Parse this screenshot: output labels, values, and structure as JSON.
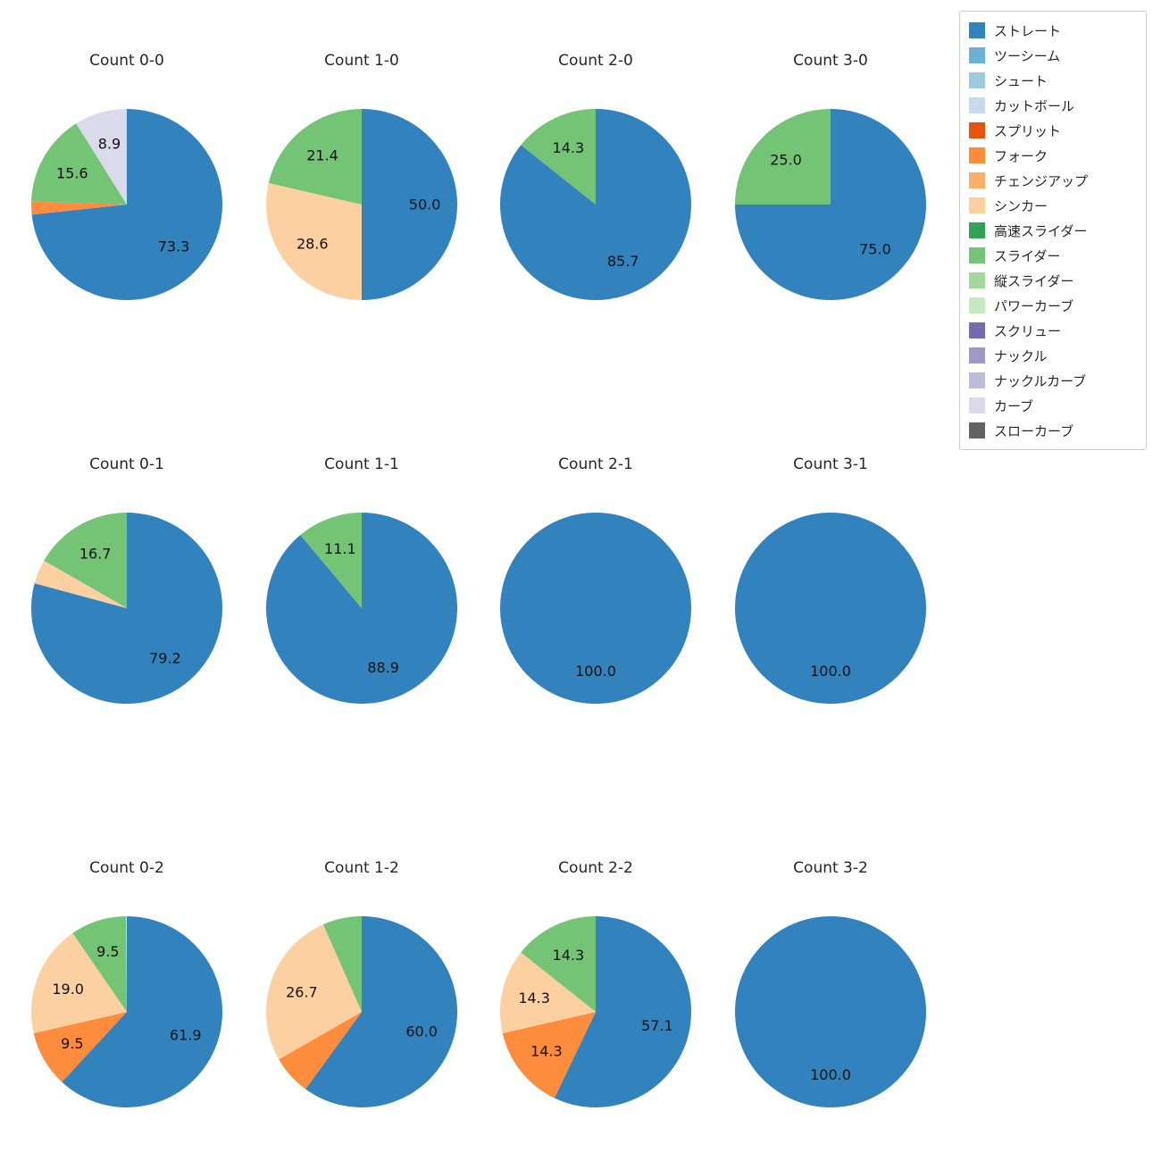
{
  "figure": {
    "background": "#ffffff"
  },
  "legend": {
    "position": "top-right",
    "items": [
      {
        "label": "ストレート",
        "color": "#3182bd"
      },
      {
        "label": "ツーシーム",
        "color": "#6baed6"
      },
      {
        "label": "シュート",
        "color": "#9ecae1"
      },
      {
        "label": "カットボール",
        "color": "#c6dbef"
      },
      {
        "label": "スプリット",
        "color": "#e6550d"
      },
      {
        "label": "フォーク",
        "color": "#fd8d3c"
      },
      {
        "label": "チェンジアップ",
        "color": "#fdae6b"
      },
      {
        "label": "シンカー",
        "color": "#fdd0a2"
      },
      {
        "label": "高速スライダー",
        "color": "#31a354"
      },
      {
        "label": "スライダー",
        "color": "#74c476"
      },
      {
        "label": "縦スライダー",
        "color": "#a1d99b"
      },
      {
        "label": "パワーカーブ",
        "color": "#c7e9c0"
      },
      {
        "label": "スクリュー",
        "color": "#756bb1"
      },
      {
        "label": "ナックル",
        "color": "#9e9ac8"
      },
      {
        "label": "ナックルカーブ",
        "color": "#bcbddc"
      },
      {
        "label": "カーブ",
        "color": "#dadaeb"
      },
      {
        "label": "スローカーブ",
        "color": "#636363"
      }
    ]
  },
  "chart_data": [
    {
      "type": "pie",
      "title": "Count 0-0",
      "start_angle_deg_from_top": 0,
      "direction": "clockwise",
      "slices": [
        {
          "label": "ストレート",
          "value": 73.3,
          "labeled": true
        },
        {
          "label": "フォーク",
          "value": 2.2,
          "labeled": false
        },
        {
          "label": "スライダー",
          "value": 15.6,
          "labeled": true
        },
        {
          "label": "カーブ",
          "value": 8.9,
          "labeled": true
        }
      ]
    },
    {
      "type": "pie",
      "title": "Count 1-0",
      "start_angle_deg_from_top": 0,
      "direction": "clockwise",
      "slices": [
        {
          "label": "ストレート",
          "value": 50.0,
          "labeled": true
        },
        {
          "label": "シンカー",
          "value": 28.6,
          "labeled": true
        },
        {
          "label": "スライダー",
          "value": 21.4,
          "labeled": true
        }
      ]
    },
    {
      "type": "pie",
      "title": "Count 2-0",
      "start_angle_deg_from_top": 0,
      "direction": "clockwise",
      "slices": [
        {
          "label": "ストレート",
          "value": 85.7,
          "labeled": true
        },
        {
          "label": "スライダー",
          "value": 14.3,
          "labeled": true
        }
      ]
    },
    {
      "type": "pie",
      "title": "Count 3-0",
      "start_angle_deg_from_top": 0,
      "direction": "clockwise",
      "slices": [
        {
          "label": "ストレート",
          "value": 75.0,
          "labeled": true
        },
        {
          "label": "スライダー",
          "value": 25.0,
          "labeled": true
        }
      ]
    },
    {
      "type": "pie",
      "title": "Count 0-1",
      "start_angle_deg_from_top": 0,
      "direction": "clockwise",
      "slices": [
        {
          "label": "ストレート",
          "value": 79.2,
          "labeled": true
        },
        {
          "label": "シンカー",
          "value": 4.1,
          "labeled": false
        },
        {
          "label": "スライダー",
          "value": 16.7,
          "labeled": true
        }
      ]
    },
    {
      "type": "pie",
      "title": "Count 1-1",
      "start_angle_deg_from_top": 0,
      "direction": "clockwise",
      "slices": [
        {
          "label": "ストレート",
          "value": 88.9,
          "labeled": true
        },
        {
          "label": "スライダー",
          "value": 11.1,
          "labeled": true
        }
      ]
    },
    {
      "type": "pie",
      "title": "Count 2-1",
      "start_angle_deg_from_top": 0,
      "direction": "clockwise",
      "slices": [
        {
          "label": "ストレート",
          "value": 100.0,
          "labeled": true
        }
      ]
    },
    {
      "type": "pie",
      "title": "Count 3-1",
      "start_angle_deg_from_top": 0,
      "direction": "clockwise",
      "slices": [
        {
          "label": "ストレート",
          "value": 100.0,
          "labeled": true
        }
      ]
    },
    {
      "type": "pie",
      "title": "Count 0-2",
      "start_angle_deg_from_top": 0,
      "direction": "clockwise",
      "slices": [
        {
          "label": "ストレート",
          "value": 61.9,
          "labeled": true
        },
        {
          "label": "フォーク",
          "value": 9.5,
          "labeled": true
        },
        {
          "label": "シンカー",
          "value": 19.0,
          "labeled": true
        },
        {
          "label": "スライダー",
          "value": 9.5,
          "labeled": true
        }
      ]
    },
    {
      "type": "pie",
      "title": "Count 1-2",
      "start_angle_deg_from_top": 0,
      "direction": "clockwise",
      "slices": [
        {
          "label": "ストレート",
          "value": 60.0,
          "labeled": true
        },
        {
          "label": "フォーク",
          "value": 6.7,
          "labeled": false
        },
        {
          "label": "シンカー",
          "value": 26.7,
          "labeled": true
        },
        {
          "label": "スライダー",
          "value": 6.6,
          "labeled": false
        }
      ]
    },
    {
      "type": "pie",
      "title": "Count 2-2",
      "start_angle_deg_from_top": 0,
      "direction": "clockwise",
      "slices": [
        {
          "label": "ストレート",
          "value": 57.1,
          "labeled": true
        },
        {
          "label": "フォーク",
          "value": 14.3,
          "labeled": true
        },
        {
          "label": "シンカー",
          "value": 14.3,
          "labeled": true
        },
        {
          "label": "スライダー",
          "value": 14.3,
          "labeled": true
        }
      ]
    },
    {
      "type": "pie",
      "title": "Count 3-2",
      "start_angle_deg_from_top": 0,
      "direction": "clockwise",
      "slices": [
        {
          "label": "ストレート",
          "value": 100.0,
          "labeled": true
        }
      ]
    }
  ]
}
